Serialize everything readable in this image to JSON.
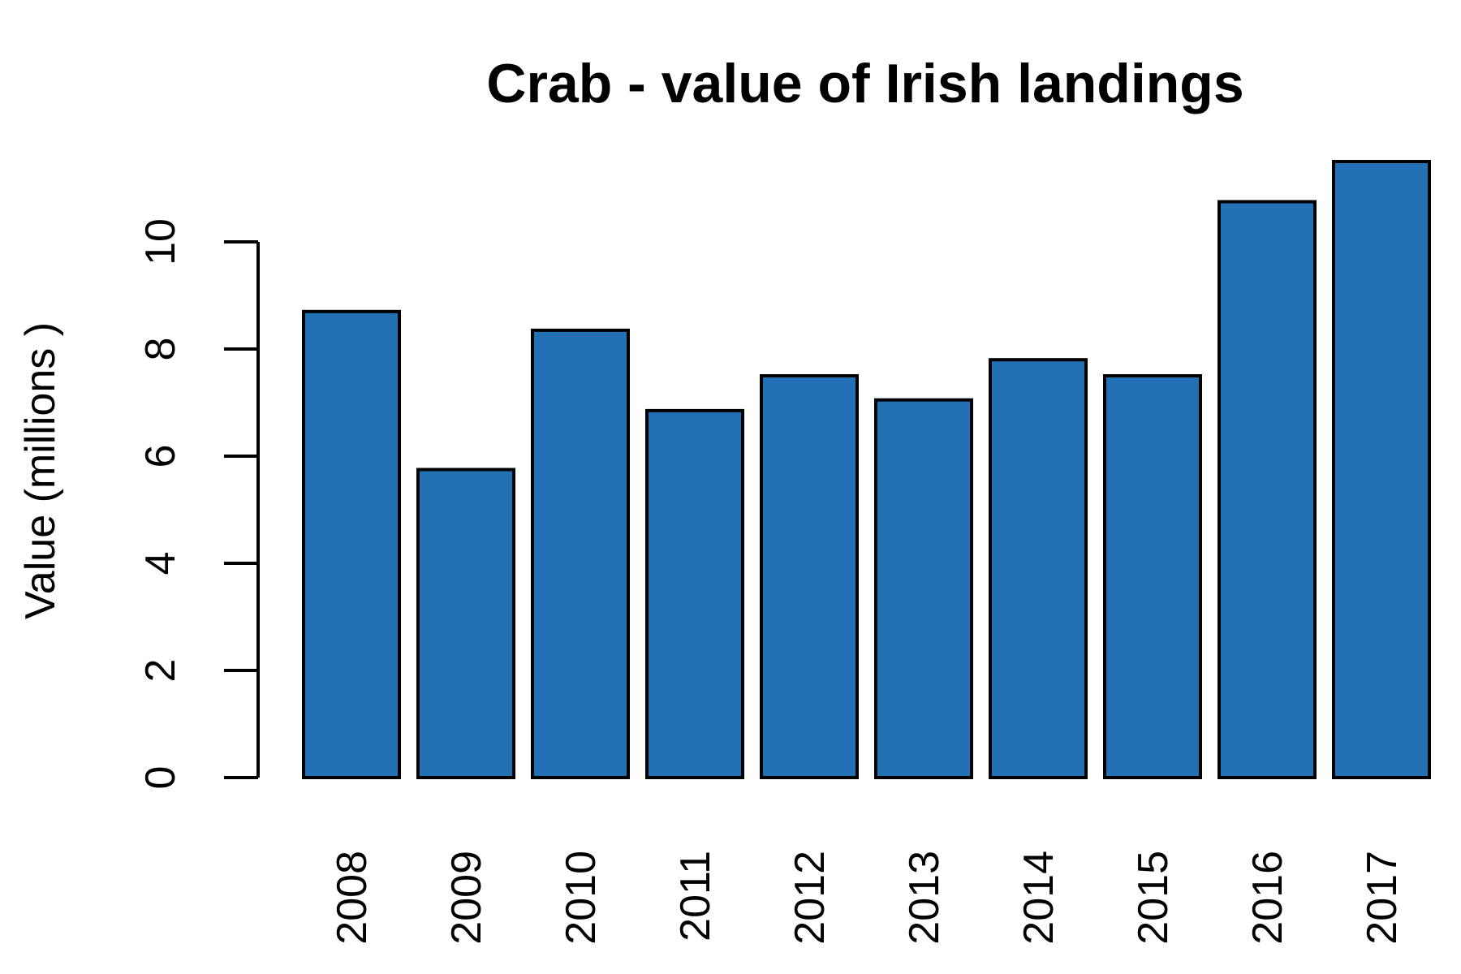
{
  "chart_data": {
    "type": "bar",
    "title": "Crab - value of Irish landings",
    "xlabel": "",
    "ylabel": "Value (millions )",
    "categories": [
      "2008",
      "2009",
      "2010",
      "2011",
      "2012",
      "2013",
      "2014",
      "2015",
      "2016",
      "2017"
    ],
    "values": [
      8.7,
      5.75,
      8.35,
      6.85,
      7.5,
      7.05,
      7.8,
      7.5,
      10.75,
      11.5
    ],
    "ylim": [
      0,
      11.5
    ],
    "yticks": [
      0,
      2,
      4,
      6,
      8,
      10
    ],
    "grid": false,
    "bar_color": "#2371B5",
    "bar_border_color": "#000000"
  }
}
